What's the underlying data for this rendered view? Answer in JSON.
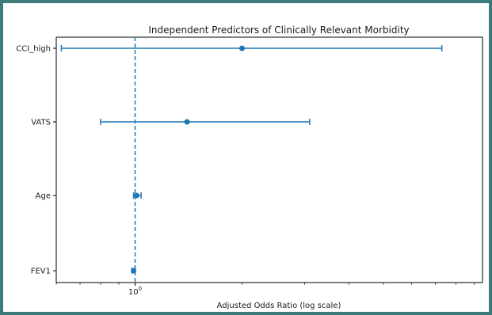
{
  "chart_data": {
    "type": "forest",
    "title": "Independent Predictors of Clinically Relevant Morbidity",
    "xlabel": "Adjusted Odds Ratio (log scale)",
    "ylabel": "",
    "xscale": "log",
    "xlim": [
      0.6,
      9.5
    ],
    "x_tick_labels": [
      {
        "value": 1,
        "label": "10^0"
      }
    ],
    "reference_line": {
      "x": 1,
      "style": "dashed"
    },
    "grid": false,
    "color": "#1f77b4",
    "predictors": [
      {
        "name": "CCI_high",
        "or": 2.0,
        "ci_low": 0.62,
        "ci_high": 7.3
      },
      {
        "name": "VATS",
        "or": 1.4,
        "ci_low": 0.8,
        "ci_high": 3.1
      },
      {
        "name": "Age",
        "or": 1.01,
        "ci_low": 0.99,
        "ci_high": 1.04
      },
      {
        "name": "FEV1",
        "or": 0.99,
        "ci_low": 0.98,
        "ci_high": 1.0
      }
    ]
  }
}
